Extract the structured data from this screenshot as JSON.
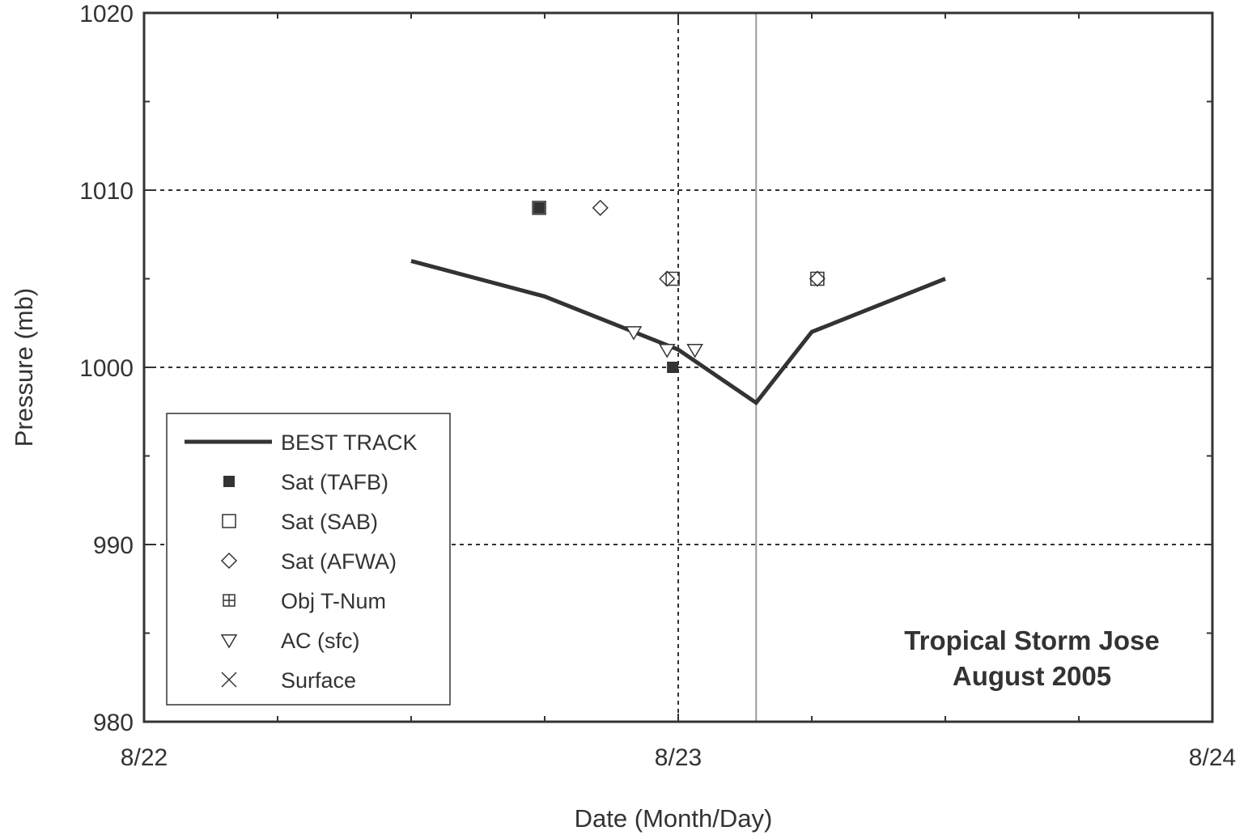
{
  "chart_data": {
    "type": "line",
    "title": "",
    "xlabel": "Date (Month/Day)",
    "ylabel": "Pressure (mb)",
    "xlim": [
      "2005-08-22T00:00",
      "2005-08-24T00:00"
    ],
    "ylim": [
      980,
      1020
    ],
    "x_ticks": [
      "2005-08-22T00:00",
      "2005-08-23T00:00",
      "2005-08-24T00:00"
    ],
    "x_tick_labels": [
      "8/22",
      "8/23",
      "8/24"
    ],
    "y_ticks": [
      980,
      990,
      1000,
      1010,
      1020
    ],
    "y_tick_labels": [
      "980",
      "990",
      "1000",
      "1010",
      "1020"
    ],
    "grid": "dotted at major ticks",
    "legend_position": "bottom-left",
    "annotation": [
      "Tropical Storm Jose",
      "August 2005"
    ],
    "reference_line_x": "2005-08-23T03:30",
    "series": [
      {
        "name": "BEST TRACK",
        "marker": "line",
        "color": "#333333",
        "points": [
          {
            "x": "2005-08-22T12:00",
            "y": 1006
          },
          {
            "x": "2005-08-22T18:00",
            "y": 1004
          },
          {
            "x": "2005-08-23T00:00",
            "y": 1001
          },
          {
            "x": "2005-08-23T03:30",
            "y": 998
          },
          {
            "x": "2005-08-23T06:00",
            "y": 1002
          },
          {
            "x": "2005-08-23T12:00",
            "y": 1005
          }
        ]
      },
      {
        "name": "Sat (TAFB)",
        "marker": "filled-square",
        "points": [
          {
            "x": "2005-08-22T17:45",
            "y": 1009
          },
          {
            "x": "2005-08-22T23:45",
            "y": 1000
          }
        ]
      },
      {
        "name": "Sat (SAB)",
        "marker": "open-square",
        "points": [
          {
            "x": "2005-08-22T17:45",
            "y": 1009
          },
          {
            "x": "2005-08-22T23:45",
            "y": 1005
          },
          {
            "x": "2005-08-23T06:15",
            "y": 1005
          }
        ]
      },
      {
        "name": "Sat (AFWA)",
        "marker": "diamond",
        "points": [
          {
            "x": "2005-08-22T20:30",
            "y": 1009
          },
          {
            "x": "2005-08-22T23:30",
            "y": 1005
          },
          {
            "x": "2005-08-23T06:15",
            "y": 1005
          }
        ]
      },
      {
        "name": "Obj T-Num",
        "marker": "crossed-square",
        "points": []
      },
      {
        "name": "AC (sfc)",
        "marker": "triangle-down",
        "points": [
          {
            "x": "2005-08-22T22:00",
            "y": 1002
          },
          {
            "x": "2005-08-22T23:30",
            "y": 1001
          },
          {
            "x": "2005-08-23T00:45",
            "y": 1001
          }
        ]
      },
      {
        "name": "Surface",
        "marker": "x",
        "points": []
      }
    ]
  }
}
